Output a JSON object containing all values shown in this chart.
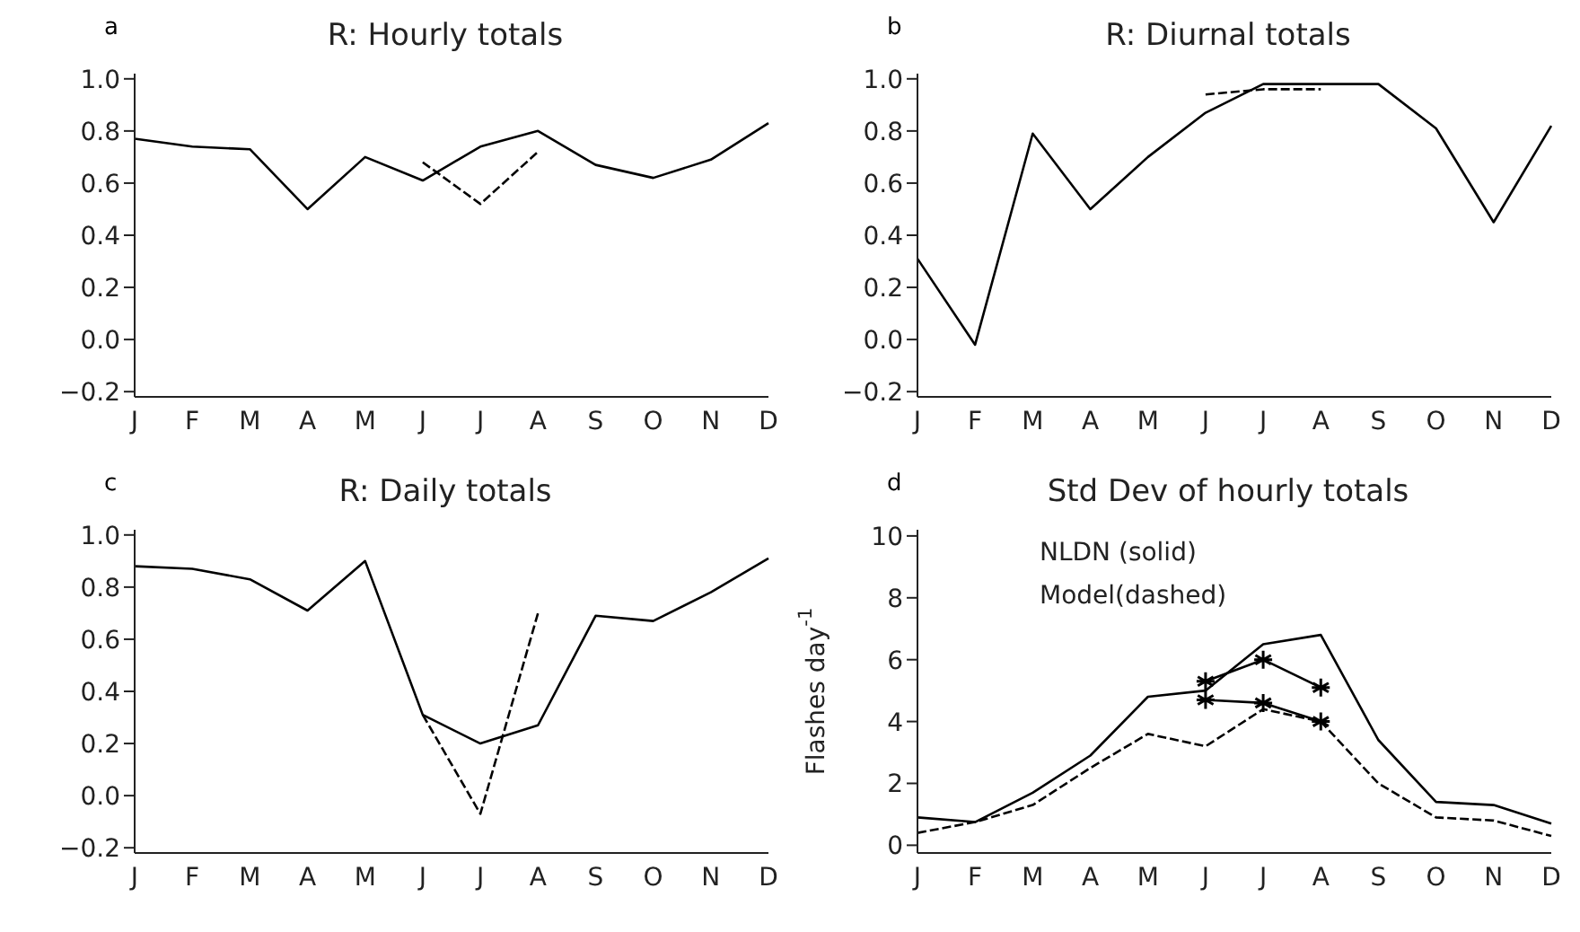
{
  "chart_data": [
    {
      "type": "line",
      "title": "R: Hourly totals",
      "annotations": [
        "a"
      ],
      "categories": [
        "J",
        "F",
        "M",
        "A",
        "M",
        "J",
        "J",
        "A",
        "S",
        "O",
        "N",
        "D"
      ],
      "ylim": [
        -0.22,
        1.02
      ],
      "yticks": [
        {
          "value": -0.2,
          "label": "−0.2"
        },
        {
          "value": 0,
          "label": "0.0"
        },
        {
          "value": 0.2,
          "label": "0.2"
        },
        {
          "value": 0.4,
          "label": "0.4"
        },
        {
          "value": 0.6,
          "label": "0.6"
        },
        {
          "value": 0.8,
          "label": "0.8"
        },
        {
          "value": 1,
          "label": "1.0"
        }
      ],
      "marker": "none",
      "series": [
        {
          "color": "#000000",
          "line_style": "solid",
          "values": [
            0.77,
            0.74,
            0.73,
            0.5,
            0.7,
            0.61,
            0.74,
            0.8,
            0.67,
            0.62,
            0.69,
            0.83
          ]
        },
        {
          "color": "#000000",
          "line_style": "dashed",
          "values": [
            null,
            null,
            null,
            null,
            null,
            0.68,
            0.52,
            0.72,
            null,
            null,
            null,
            null
          ]
        }
      ]
    },
    {
      "type": "line",
      "title": "R: Diurnal totals",
      "annotations": [
        "b"
      ],
      "categories": [
        "J",
        "F",
        "M",
        "A",
        "M",
        "J",
        "J",
        "A",
        "S",
        "O",
        "N",
        "D"
      ],
      "ylim": [
        -0.22,
        1.02
      ],
      "yticks": [
        {
          "value": -0.2,
          "label": "−0.2"
        },
        {
          "value": 0,
          "label": "0.0"
        },
        {
          "value": 0.2,
          "label": "0.2"
        },
        {
          "value": 0.4,
          "label": "0.4"
        },
        {
          "value": 0.6,
          "label": "0.6"
        },
        {
          "value": 0.8,
          "label": "0.8"
        },
        {
          "value": 1,
          "label": "1.0"
        }
      ],
      "marker": "none",
      "series": [
        {
          "color": "#000000",
          "line_style": "solid",
          "values": [
            0.31,
            -0.02,
            0.79,
            0.5,
            0.7,
            0.87,
            0.98,
            0.98,
            0.98,
            0.81,
            0.45,
            0.82
          ]
        },
        {
          "color": "#000000",
          "line_style": "dashed",
          "values": [
            null,
            null,
            null,
            null,
            null,
            0.94,
            0.96,
            0.96,
            null,
            null,
            null,
            null
          ]
        }
      ]
    },
    {
      "type": "line",
      "title": "R: Daily totals",
      "annotations": [
        "c"
      ],
      "categories": [
        "J",
        "F",
        "M",
        "A",
        "M",
        "J",
        "J",
        "A",
        "S",
        "O",
        "N",
        "D"
      ],
      "ylim": [
        -0.22,
        1.02
      ],
      "yticks": [
        {
          "value": -0.2,
          "label": "−0.2"
        },
        {
          "value": 0,
          "label": "0.0"
        },
        {
          "value": 0.2,
          "label": "0.2"
        },
        {
          "value": 0.4,
          "label": "0.4"
        },
        {
          "value": 0.6,
          "label": "0.6"
        },
        {
          "value": 0.8,
          "label": "0.8"
        },
        {
          "value": 1,
          "label": "1.0"
        }
      ],
      "marker": "none",
      "series": [
        {
          "color": "#000000",
          "line_style": "solid",
          "values": [
            0.88,
            0.87,
            0.83,
            0.71,
            0.9,
            0.31,
            0.2,
            0.27,
            0.69,
            0.67,
            0.78,
            0.91
          ]
        },
        {
          "color": "#000000",
          "line_style": "dashed",
          "values": [
            null,
            null,
            null,
            null,
            null,
            0.31,
            -0.07,
            0.7,
            null,
            null,
            null,
            null
          ]
        }
      ]
    },
    {
      "type": "line",
      "title": "Std Dev of hourly totals",
      "ylabel": "Flashes day$^{-1}$",
      "annotations": [
        "d",
        "NLDN (solid)",
        "Model(dashed)"
      ],
      "categories": [
        "J",
        "F",
        "M",
        "A",
        "M",
        "J",
        "J",
        "A",
        "S",
        "O",
        "N",
        "D"
      ],
      "ylim": [
        -0.25,
        10.2
      ],
      "yticks": [
        0,
        2,
        4,
        6,
        8,
        10
      ],
      "marker": "none",
      "series": [
        {
          "color": "#000000",
          "line_style": "solid",
          "values": [
            0.9,
            0.75,
            1.7,
            2.9,
            4.8,
            5.0,
            6.5,
            6.8,
            3.4,
            1.4,
            1.3,
            0.7
          ]
        },
        {
          "color": "#000000",
          "line_style": "dashed",
          "values": [
            0.4,
            0.75,
            1.3,
            2.5,
            3.6,
            3.2,
            4.4,
            4.0,
            2.0,
            0.9,
            0.8,
            0.3
          ]
        },
        {
          "color": "#000000",
          "line_style": "solid",
          "marker": "cross",
          "values": [
            null,
            null,
            null,
            null,
            null,
            5.3,
            6.0,
            5.1,
            null,
            null,
            null,
            null
          ]
        },
        {
          "color": "#000000",
          "line_style": "solid",
          "marker": "cross",
          "values": [
            null,
            null,
            null,
            null,
            null,
            4.7,
            4.6,
            4.0,
            null,
            null,
            null,
            null
          ]
        }
      ]
    }
  ]
}
